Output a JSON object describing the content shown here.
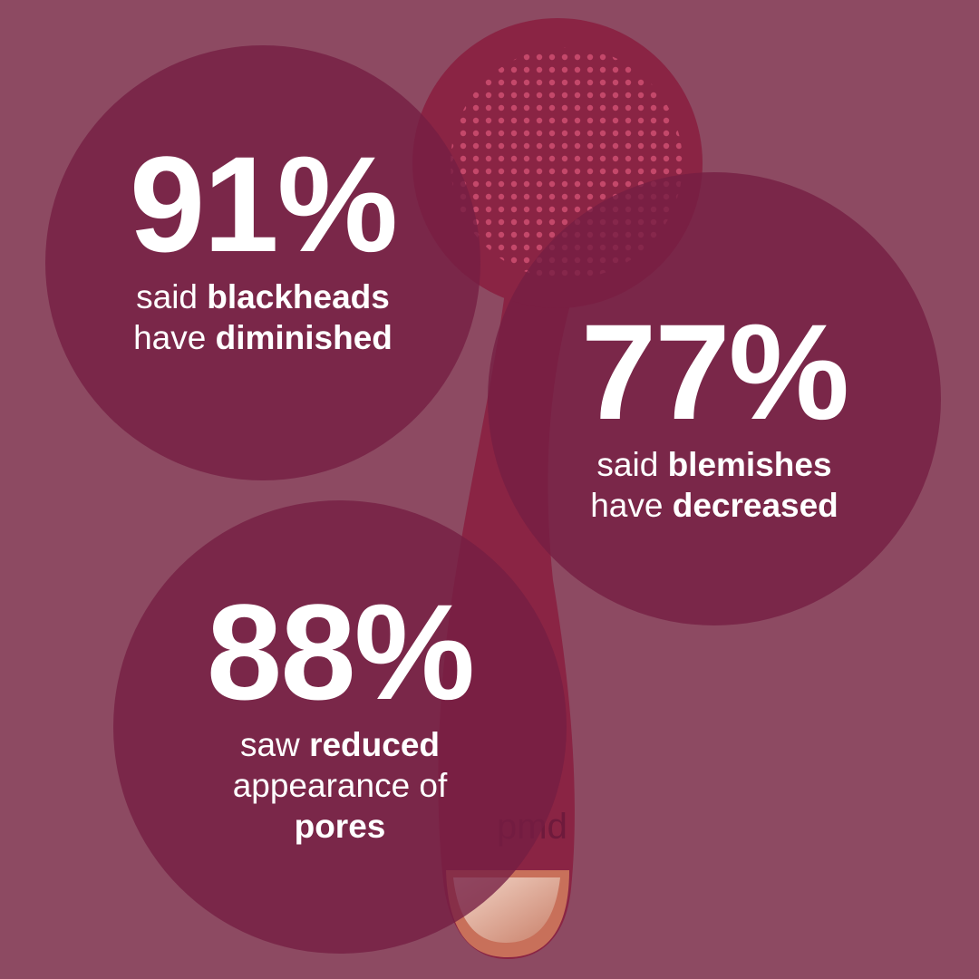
{
  "colors": {
    "background": "#8d4a62",
    "circle": "#741e42",
    "device": "#8a2444",
    "accent_copper": "#e6b9a6"
  },
  "device": {
    "logo": "pmd"
  },
  "stats": [
    {
      "value": "91%",
      "lines": [
        {
          "pre": "said ",
          "bold": "blackheads"
        },
        {
          "pre": "have ",
          "bold": "diminished"
        }
      ]
    },
    {
      "value": "77%",
      "lines": [
        {
          "pre": "said ",
          "bold": "blemishes"
        },
        {
          "pre": "have ",
          "bold": "decreased"
        }
      ]
    },
    {
      "value": "88%",
      "lines": [
        {
          "pre": "saw ",
          "bold": "reduced"
        },
        {
          "pre": "appearance of",
          "bold": ""
        },
        {
          "pre": "",
          "bold": "pores"
        }
      ]
    }
  ]
}
